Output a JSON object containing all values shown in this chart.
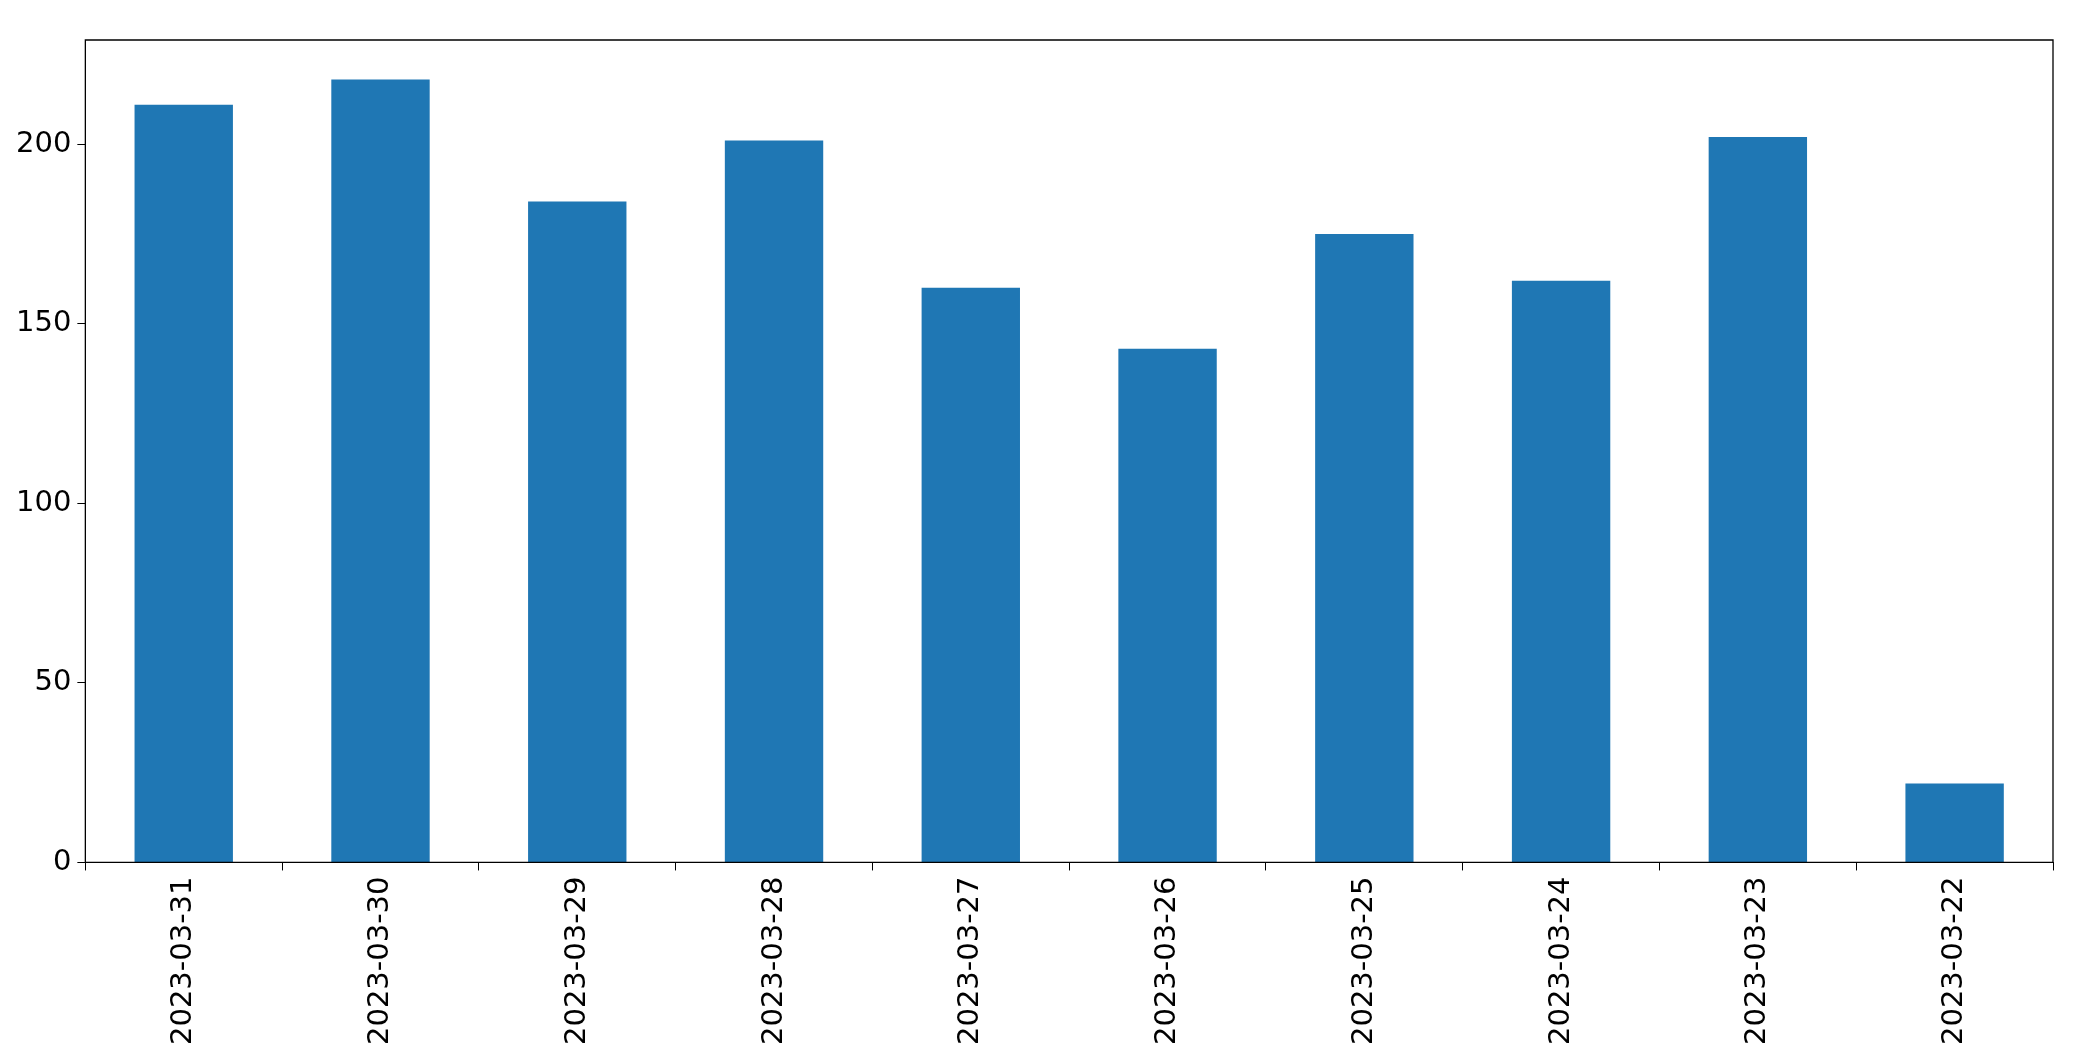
{
  "chart_data": {
    "type": "bar",
    "categories": [
      "2023-03-31",
      "2023-03-30",
      "2023-03-29",
      "2023-03-28",
      "2023-03-27",
      "2023-03-26",
      "2023-03-25",
      "2023-03-24",
      "2023-03-23",
      "2023-03-22"
    ],
    "values": [
      211,
      218,
      184,
      201,
      160,
      143,
      175,
      162,
      202,
      22
    ],
    "color": "#1f77b4",
    "ylim": [
      0,
      229
    ],
    "yticks": [
      0,
      50,
      100,
      150,
      200
    ],
    "grid": false,
    "legend": false
  }
}
